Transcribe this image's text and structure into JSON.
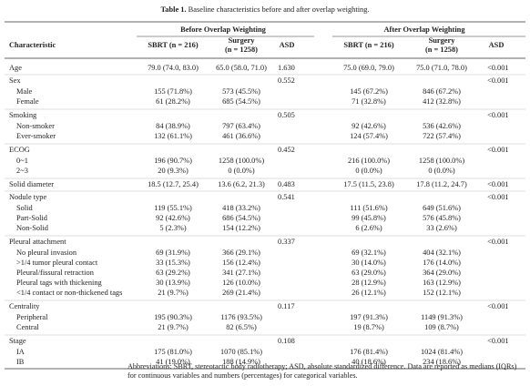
{
  "caption": {
    "label": "Table 1.",
    "text": "Baseline characteristics before and after overlap weighting."
  },
  "table": {
    "group_headers": [
      "Before Overlap Weighting",
      "After Overlap Weighting"
    ],
    "columns": [
      [
        "Characteristic"
      ],
      [
        "SBRT (n = 216)"
      ],
      [
        "Surgery",
        "(n = 1258)"
      ],
      [
        "ASD"
      ],
      [
        "SBRT (n = 216)"
      ],
      [
        "Surgery",
        "(n = 1258)"
      ],
      [
        "ASD"
      ]
    ],
    "sections": [
      {
        "label": "Age",
        "values": [
          "79.0 (74.0, 83.0)",
          "65.0 (58.0, 71.0)",
          "1.630",
          "75.0 (69.0, 79.0)",
          "75.0 (71.0, 78.0)",
          "<0.001"
        ],
        "rows": []
      },
      {
        "label": "Sex",
        "asd": [
          "0.552",
          "<0.001"
        ],
        "rows": [
          {
            "label": "Male",
            "values": [
              "155 (71.8%)",
              "573 (45.5%)",
              "145 (67.2%)",
              "846 (67.2%)"
            ]
          },
          {
            "label": "Female",
            "values": [
              "61 (28.2%)",
              "685 (54.5%)",
              "71 (32.8%)",
              "412 (32.8%)"
            ]
          }
        ]
      },
      {
        "label": "Smoking",
        "asd": [
          "0.505",
          "<0.001"
        ],
        "rows": [
          {
            "label": "Non-smoker",
            "values": [
              "84 (38.9%)",
              "797 (63.4%)",
              "92 (42.6%)",
              "536 (42.6%)"
            ]
          },
          {
            "label": "Ever-smoker",
            "values": [
              "132 (61.1%)",
              "461 (36.6%)",
              "124 (57.4%)",
              "722 (57.4%)"
            ]
          }
        ]
      },
      {
        "label": "ECOG",
        "asd": [
          "0.452",
          "<0.001"
        ],
        "rows": [
          {
            "label": "0~1",
            "values": [
              "196 (90.7%)",
              "1258 (100.0%)",
              "216 (100.0%)",
              "1258 (100.0%)"
            ]
          },
          {
            "label": "2~3",
            "values": [
              "20 (9.3%)",
              "0 (0.0%)",
              "0 (0.0%)",
              "0 (0.0%)"
            ]
          }
        ]
      },
      {
        "label": "Solid diameter",
        "values": [
          "18.5 (12.7, 25.4)",
          "13.6 (6.2, 21.3)",
          "0.483",
          "17.5 (11.5, 23.8)",
          "17.8 (11.2, 24.7)",
          "<0.001"
        ],
        "rows": []
      },
      {
        "label": "Nodule type",
        "asd": [
          "0.541",
          "<0.001"
        ],
        "rows": [
          {
            "label": "Solid",
            "values": [
              "119 (55.1%)",
              "418 (33.2%)",
              "111 (51.6%)",
              "649 (51.6%)"
            ]
          },
          {
            "label": "Part-Solid",
            "values": [
              "92 (42.6%)",
              "686 (54.5%)",
              "99 (45.8%)",
              "576 (45.8%)"
            ]
          },
          {
            "label": "Non-Solid",
            "values": [
              "5 (2.3%)",
              "154 (12.2%)",
              "6 (2.6%)",
              "33 (2.6%)"
            ]
          }
        ]
      },
      {
        "label": "Pleural attachment",
        "asd": [
          "0.337",
          "<0.001"
        ],
        "rows": [
          {
            "label": "No pleural invasion",
            "values": [
              "69 (31.9%)",
              "366 (29.1%)",
              "69 (32.1%)",
              "404 (32.1%)"
            ]
          },
          {
            "label": ">1/4 tumor pleural contact",
            "values": [
              "33 (15.3%)",
              "156 (12.4%)",
              "30 (14.0%)",
              "176 (14.0%)"
            ]
          },
          {
            "label": "Pleural/fissural retraction",
            "values": [
              "63 (29.2%)",
              "341 (27.1%)",
              "63 (29.0%)",
              "364 (29.0%)"
            ]
          },
          {
            "label": "Pleural tags with thickening",
            "values": [
              "30 (13.9%)",
              "126 (10.0%)",
              "28 (12.9%)",
              "163 (12.9%)"
            ]
          },
          {
            "label": "<1/4 contact or non-thickened tags",
            "values": [
              "21 (9.7%)",
              "269 (21.4%)",
              "26 (12.1%)",
              "152 (12.1%)"
            ]
          }
        ]
      },
      {
        "label": "Centrality",
        "asd": [
          "0.117",
          "<0.001"
        ],
        "rows": [
          {
            "label": "Peripheral",
            "values": [
              "195 (90.3%)",
              "1176 (93.5%)",
              "197 (91.3%)",
              "1149 (91.3%)"
            ]
          },
          {
            "label": "Central",
            "values": [
              "21 (9.7%)",
              "82 (6.5%)",
              "19 (8.7%)",
              "109 (8.7%)"
            ]
          }
        ]
      },
      {
        "label": "Stage",
        "asd": [
          "0.108",
          "<0.001"
        ],
        "rows": [
          {
            "label": "IA",
            "values": [
              "175 (81.0%)",
              "1070 (85.1%)",
              "176 (81.4%)",
              "1024 (81.4%)"
            ]
          },
          {
            "label": "IB",
            "values": [
              "41 (19.0%)",
              "188 (14.9%)",
              "40 (18.6%)",
              "234 (18.6%)"
            ]
          }
        ]
      }
    ]
  },
  "footnote": "Abbreviations: SBRT, stereotactic body radiotherapy; ASD, absolute standardized difference. Data are reported as medians (IQRs) for continuous variables and numbers (percentages) for categorical variables."
}
